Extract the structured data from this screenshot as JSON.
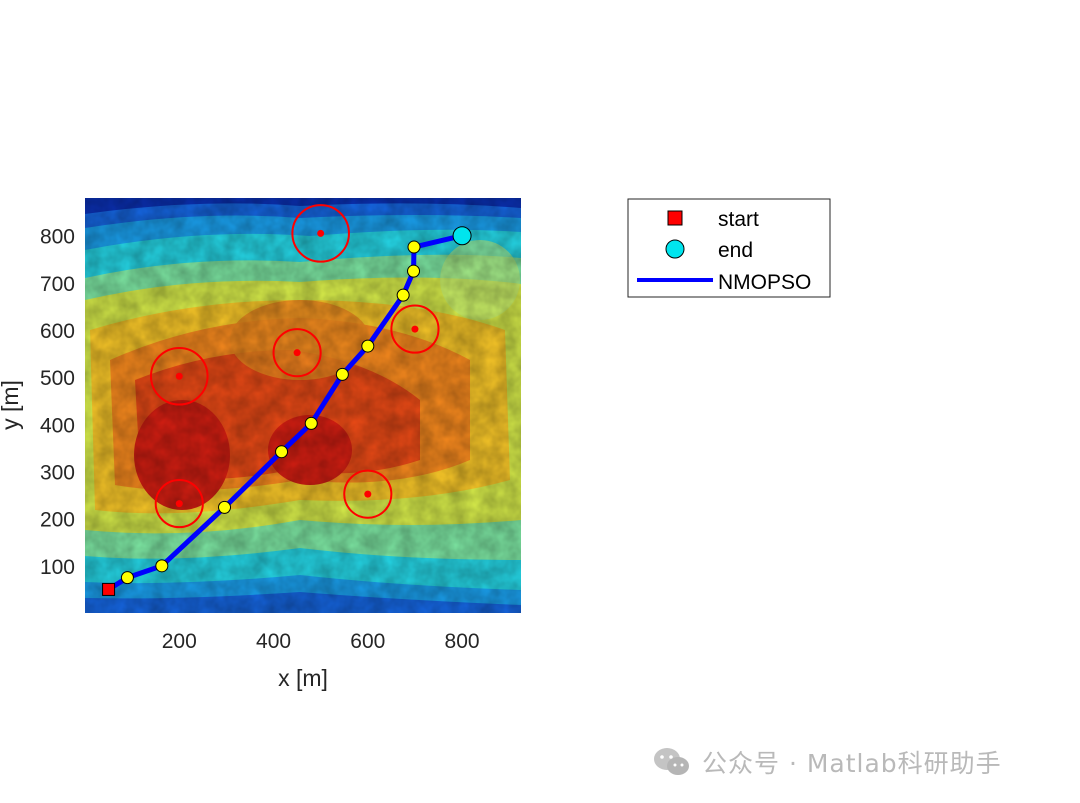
{
  "chart_data": {
    "type": "line",
    "background": "terrain elevation heatmap (jet colormap)",
    "xlabel": "x [m]",
    "ylabel": "y [m]",
    "xlim": [
      0,
      925
    ],
    "ylim": [
      0,
      880
    ],
    "xticks": [
      200,
      400,
      600,
      800
    ],
    "yticks": [
      100,
      200,
      300,
      400,
      500,
      600,
      700,
      800
    ],
    "grid": false,
    "legend_position": "right-of-plot",
    "start": {
      "label": "start",
      "x": 50,
      "y": 50,
      "color": "#ff0000"
    },
    "end": {
      "label": "end",
      "x": 800,
      "y": 800,
      "color": "#00e5ee"
    },
    "path": {
      "name": "NMOPSO",
      "color": "#0000ff",
      "waypoint_color": "#ffff00",
      "x": [
        50,
        90,
        163,
        296,
        417,
        480,
        546,
        600,
        675,
        697,
        698,
        800
      ],
      "y": [
        50,
        75,
        100,
        224,
        342,
        402,
        506,
        566,
        674,
        725,
        776,
        800
      ]
    },
    "threats": {
      "color": "#ff0000",
      "items": [
        {
          "x": 500,
          "y": 805,
          "r": 60
        },
        {
          "x": 700,
          "y": 602,
          "r": 50
        },
        {
          "x": 450,
          "y": 552,
          "r": 50
        },
        {
          "x": 200,
          "y": 502,
          "r": 60
        },
        {
          "x": 600,
          "y": 252,
          "r": 50
        },
        {
          "x": 200,
          "y": 232,
          "r": 50
        }
      ]
    }
  },
  "legend": {
    "start": "start",
    "end": "end",
    "path": "NMOPSO"
  },
  "watermark": {
    "icon": "wechat-icon",
    "text": "公众号 · Matlab科研助手"
  }
}
